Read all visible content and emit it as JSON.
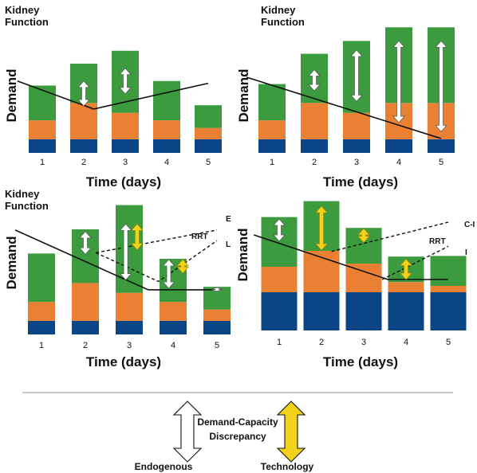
{
  "colors": {
    "base": "#0b4585",
    "mid": "#ea8034",
    "top": "#3c9b3e",
    "endogenous": "#ffffff",
    "technology": "#f2d21b",
    "line": "#111111"
  },
  "panels": [
    {
      "title": "Kidney Function",
      "ylabel": "Demand",
      "xlabel": "Time (days)",
      "days": [
        "1",
        "2",
        "3",
        "4",
        "5"
      ],
      "bars": [
        {
          "blue": 0.18,
          "orange": 0.25,
          "green": 0.46
        },
        {
          "blue": 0.18,
          "orange": 0.48,
          "green": 0.52
        },
        {
          "blue": 0.18,
          "orange": 0.35,
          "green": 0.82
        },
        {
          "blue": 0.18,
          "orange": 0.25,
          "green": 0.52
        },
        {
          "blue": 0.18,
          "orange": 0.15,
          "green": 0.3
        }
      ],
      "function_line": [
        [
          0.0,
          0.95
        ],
        [
          2.0,
          0.58
        ],
        [
          5.0,
          0.92
        ]
      ],
      "arrows": [
        {
          "day": 2,
          "type": "endogenous",
          "top": 0.95,
          "bottom": 0.62
        },
        {
          "day": 3,
          "type": "endogenous",
          "top": 1.12,
          "bottom": 0.78
        }
      ],
      "line_labels": []
    },
    {
      "title": "Kidney Function",
      "ylabel": "Demand",
      "xlabel": "Time (days)",
      "days": [
        "1",
        "2",
        "3",
        "4",
        "5"
      ],
      "bars": [
        {
          "blue": 0.18,
          "orange": 0.25,
          "green": 0.48
        },
        {
          "blue": 0.18,
          "orange": 0.48,
          "green": 0.65
        },
        {
          "blue": 0.18,
          "orange": 0.35,
          "green": 0.95
        },
        {
          "blue": 0.18,
          "orange": 0.48,
          "green": 1.0
        },
        {
          "blue": 0.18,
          "orange": 0.48,
          "green": 1.0
        }
      ],
      "function_line": [
        [
          0.0,
          1.0
        ],
        [
          5.0,
          0.19
        ]
      ],
      "arrows": [
        {
          "day": 2,
          "type": "endogenous",
          "top": 1.1,
          "bottom": 0.82
        },
        {
          "day": 3,
          "type": "endogenous",
          "top": 1.36,
          "bottom": 0.68
        },
        {
          "day": 4,
          "type": "endogenous",
          "top": 1.48,
          "bottom": 0.4
        },
        {
          "day": 5,
          "type": "endogenous",
          "top": 1.48,
          "bottom": 0.28
        }
      ],
      "line_labels": []
    },
    {
      "title": "Kidney Function",
      "ylabel": "Demand",
      "xlabel": "Time (days)",
      "days": [
        "1",
        "2",
        "3",
        "4",
        "5"
      ],
      "bars": [
        {
          "blue": 0.18,
          "orange": 0.25,
          "green": 0.64
        },
        {
          "blue": 0.18,
          "orange": 0.5,
          "green": 0.71
        },
        {
          "blue": 0.18,
          "orange": 0.37,
          "green": 1.16
        },
        {
          "blue": 0.18,
          "orange": 0.25,
          "green": 0.57
        },
        {
          "blue": 0.18,
          "orange": 0.15,
          "green": 0.3
        }
      ],
      "function_line": [
        [
          0.0,
          1.38
        ],
        [
          3.3,
          0.59
        ],
        [
          5.0,
          0.59
        ]
      ],
      "rrt_lines": [
        [
          [
            2.0,
            1.08
          ],
          [
            5.0,
            1.38
          ]
        ],
        [
          [
            2.0,
            1.08
          ],
          [
            3.55,
            0.7
          ],
          [
            5.0,
            1.24
          ]
        ]
      ],
      "arrows": [
        {
          "day": 2,
          "type": "endogenous",
          "top": 1.36,
          "bottom": 1.06
        },
        {
          "day": 2.92,
          "type": "endogenous",
          "top": 1.46,
          "bottom": 0.72
        },
        {
          "day": 3.18,
          "type": "technology",
          "top": 1.46,
          "bottom": 1.12
        },
        {
          "day": 3.9,
          "type": "endogenous",
          "top": 0.99,
          "bottom": 0.61
        },
        {
          "day": 4.22,
          "type": "technology",
          "top": 0.99,
          "bottom": 0.81
        },
        {
          "day": 5,
          "type": "endogenous",
          "top": 0.62,
          "bottom": 0.57
        }
      ],
      "line_labels": [
        "E",
        "RRT",
        "L"
      ]
    },
    {
      "title": "",
      "ylabel": "Demand",
      "xlabel": "Time (days)",
      "days": [
        "1",
        "2",
        "3",
        "4",
        "5"
      ],
      "bars": [
        {
          "blue": 0.6,
          "orange": 0.4,
          "green": 0.78
        },
        {
          "blue": 0.6,
          "orange": 0.65,
          "green": 0.78
        },
        {
          "blue": 0.6,
          "orange": 0.45,
          "green": 0.56
        },
        {
          "blue": 0.6,
          "orange": 0.16,
          "green": 0.4
        },
        {
          "blue": 0.6,
          "orange": 0.1,
          "green": 0.47
        }
      ],
      "function_line": [
        [
          0.0,
          1.5
        ],
        [
          3.45,
          0.8
        ],
        [
          5.0,
          0.8
        ]
      ],
      "rrt_lines": [
        [
          [
            2.0,
            1.24
          ],
          [
            5.0,
            1.7
          ]
        ],
        [
          [
            3.3,
            0.8
          ],
          [
            5.0,
            1.32
          ]
        ]
      ],
      "arrows": [
        {
          "day": 1,
          "type": "endogenous",
          "top": 1.75,
          "bottom": 1.4
        },
        {
          "day": 2,
          "type": "technology",
          "top": 1.95,
          "bottom": 1.26
        },
        {
          "day": 3,
          "type": "technology",
          "top": 1.6,
          "bottom": 1.38
        },
        {
          "day": 4,
          "type": "technology",
          "top": 1.12,
          "bottom": 0.8
        }
      ],
      "line_labels": [
        "C-I",
        "RRT",
        "I"
      ]
    }
  ],
  "legend": {
    "title_line1": "Demand-Capacity",
    "title_line2": "Discrepancy",
    "endogenous": "Endogenous",
    "technology": "Technology"
  }
}
